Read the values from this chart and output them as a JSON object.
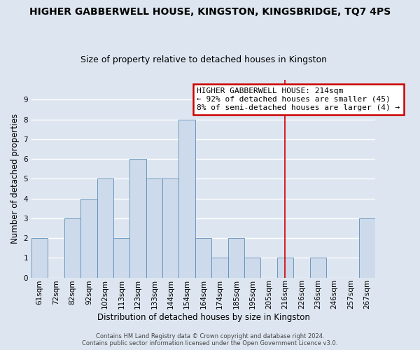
{
  "title": "HIGHER GABBERWELL HOUSE, KINGSTON, KINGSBRIDGE, TQ7 4PS",
  "subtitle": "Size of property relative to detached houses in Kingston",
  "xlabel": "Distribution of detached houses by size in Kingston",
  "ylabel": "Number of detached properties",
  "categories": [
    "61sqm",
    "72sqm",
    "82sqm",
    "92sqm",
    "102sqm",
    "113sqm",
    "123sqm",
    "133sqm",
    "144sqm",
    "154sqm",
    "164sqm",
    "174sqm",
    "185sqm",
    "195sqm",
    "205sqm",
    "216sqm",
    "226sqm",
    "236sqm",
    "246sqm",
    "257sqm",
    "267sqm"
  ],
  "values": [
    2,
    0,
    3,
    4,
    5,
    2,
    6,
    5,
    5,
    8,
    2,
    1,
    2,
    1,
    0,
    1,
    0,
    1,
    0,
    0,
    3
  ],
  "bar_color": "#cddaeb",
  "bar_edge_color": "#5b8db8",
  "background_color": "#dde6f0",
  "grid_color": "#ffffff",
  "red_line_index": 15,
  "annotation_text": "HIGHER GABBERWELL HOUSE: 214sqm\n← 92% of detached houses are smaller (45)\n8% of semi-detached houses are larger (4) →",
  "annotation_box_color": "#ffffff",
  "annotation_box_edge_color": "#cc0000",
  "red_line_color": "#cc0000",
  "ylim": [
    0,
    10
  ],
  "yticks": [
    0,
    1,
    2,
    3,
    4,
    5,
    6,
    7,
    8,
    9
  ],
  "footer": "Contains HM Land Registry data © Crown copyright and database right 2024.\nContains public sector information licensed under the Open Government Licence v3.0.",
  "title_fontsize": 10,
  "subtitle_fontsize": 9,
  "ylabel_fontsize": 8.5,
  "xlabel_fontsize": 8.5,
  "tick_fontsize": 7.5,
  "annotation_fontsize": 8,
  "footer_fontsize": 6
}
